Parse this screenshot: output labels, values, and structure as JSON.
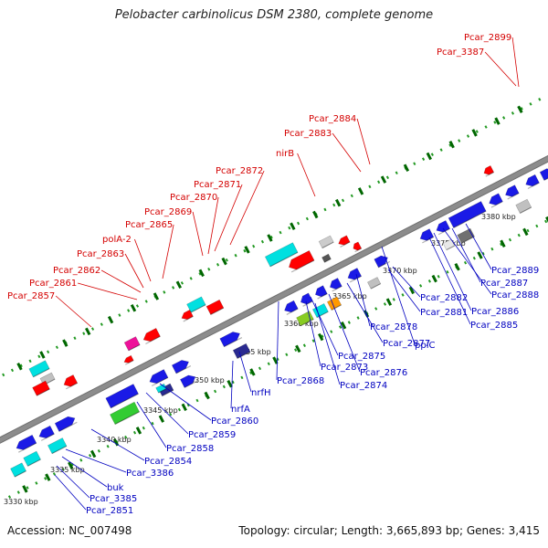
{
  "title": "Pelobacter carbinolicus DSM 2380, complete genome",
  "accession": "Accession: NC_007498",
  "summary": "Topology: circular; Length: 3,665,893 bp; Genes: 3,415",
  "colors": {
    "upper_labels": "#d40000",
    "lower_labels": "#0000c0",
    "backbone": "#8c8c8c",
    "dots": "#229922",
    "ticks": "#006600"
  },
  "scale_ticks": [
    "3330 kbp",
    "3335 kbp",
    "3340 kbp",
    "3345 kbp",
    "3350 kbp",
    "3355 kbp",
    "3360 kbp",
    "3365 kbp",
    "3370 kbp",
    "3375 kbp",
    "3380 kbp"
  ],
  "upper_labels": [
    "Pcar_2857",
    "Pcar_2861",
    "Pcar_2862",
    "Pcar_2863",
    "polA-2",
    "Pcar_2865",
    "Pcar_2869",
    "Pcar_2870",
    "Pcar_2871",
    "Pcar_2872",
    "nirB",
    "Pcar_2883",
    "Pcar_2884",
    "Pcar_3387",
    "Pcar_2899"
  ],
  "lower_labels": [
    "Pcar_2851",
    "Pcar_3385",
    "buk",
    "Pcar_3386",
    "Pcar_2854",
    "Pcar_2858",
    "Pcar_2859",
    "Pcar_2860",
    "nrfA",
    "nrfH",
    "Pcar_2868",
    "Pcar_2873",
    "Pcar_2874",
    "Pcar_2875",
    "Pcar_2876",
    "Pcar_2877",
    "Pcar_2878",
    "ppiC",
    "Pcar_2881",
    "Pcar_2882",
    "Pcar_2885",
    "Pcar_2886",
    "Pcar_2887",
    "Pcar_2888",
    "Pcar_2889"
  ]
}
